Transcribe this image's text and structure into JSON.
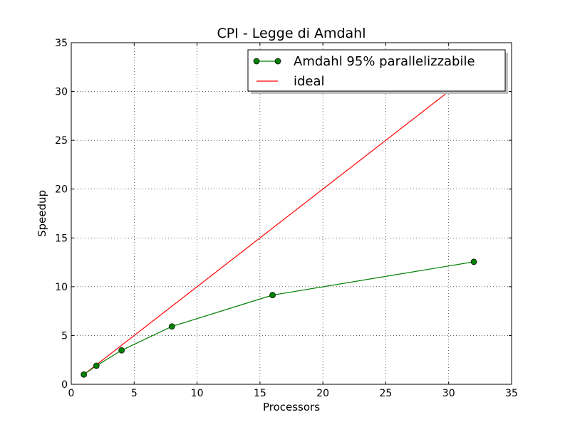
{
  "chart_data": {
    "type": "line",
    "title": "CPI -  Legge di Amdahl",
    "xlabel": "Processors",
    "ylabel": "Speedup",
    "xlim": [
      0,
      35
    ],
    "ylim": [
      0,
      35
    ],
    "xticks": [
      0,
      5,
      10,
      15,
      20,
      25,
      30,
      35
    ],
    "yticks": [
      0,
      5,
      10,
      15,
      20,
      25,
      30,
      35
    ],
    "grid": true,
    "legend_position": "top-right",
    "series": [
      {
        "name": "Amdahl  95% parallelizzabile",
        "color": "#008000",
        "marker": "circle",
        "x": [
          1,
          2,
          4,
          8,
          16,
          32
        ],
        "y": [
          1.0,
          1.9,
          3.48,
          5.93,
          9.14,
          12.55
        ]
      },
      {
        "name": "ideal",
        "color": "#ff0000",
        "marker": "none",
        "x": [
          1,
          32
        ],
        "y": [
          1,
          32
        ]
      }
    ]
  }
}
